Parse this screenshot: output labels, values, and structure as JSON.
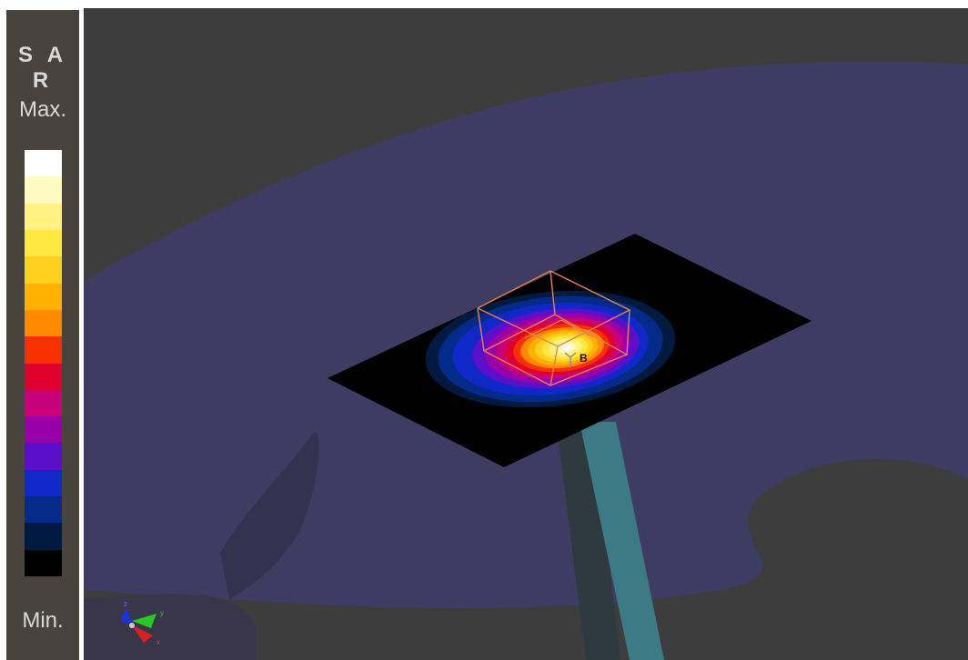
{
  "legend": {
    "title": "S A R",
    "max_label": "Max.",
    "min_label": "Min.",
    "colors": [
      "#ffffff",
      "#fffac0",
      "#fff280",
      "#ffe840",
      "#ffd020",
      "#ffb000",
      "#ff8a00",
      "#f83000",
      "#e00030",
      "#c8007a",
      "#9800aa",
      "#5a10c8",
      "#1028c8",
      "#042a8a",
      "#021a40",
      "#000000"
    ]
  },
  "scene": {
    "background_color": "#3d3d3d",
    "phantom_color": "#3f3c63",
    "plate_color": "#000000",
    "stand_color": "#3c7a86",
    "box_color": "#e8834a",
    "probe_label": "B",
    "axis_labels": {
      "x": "x",
      "y": "y",
      "z": "z"
    }
  }
}
